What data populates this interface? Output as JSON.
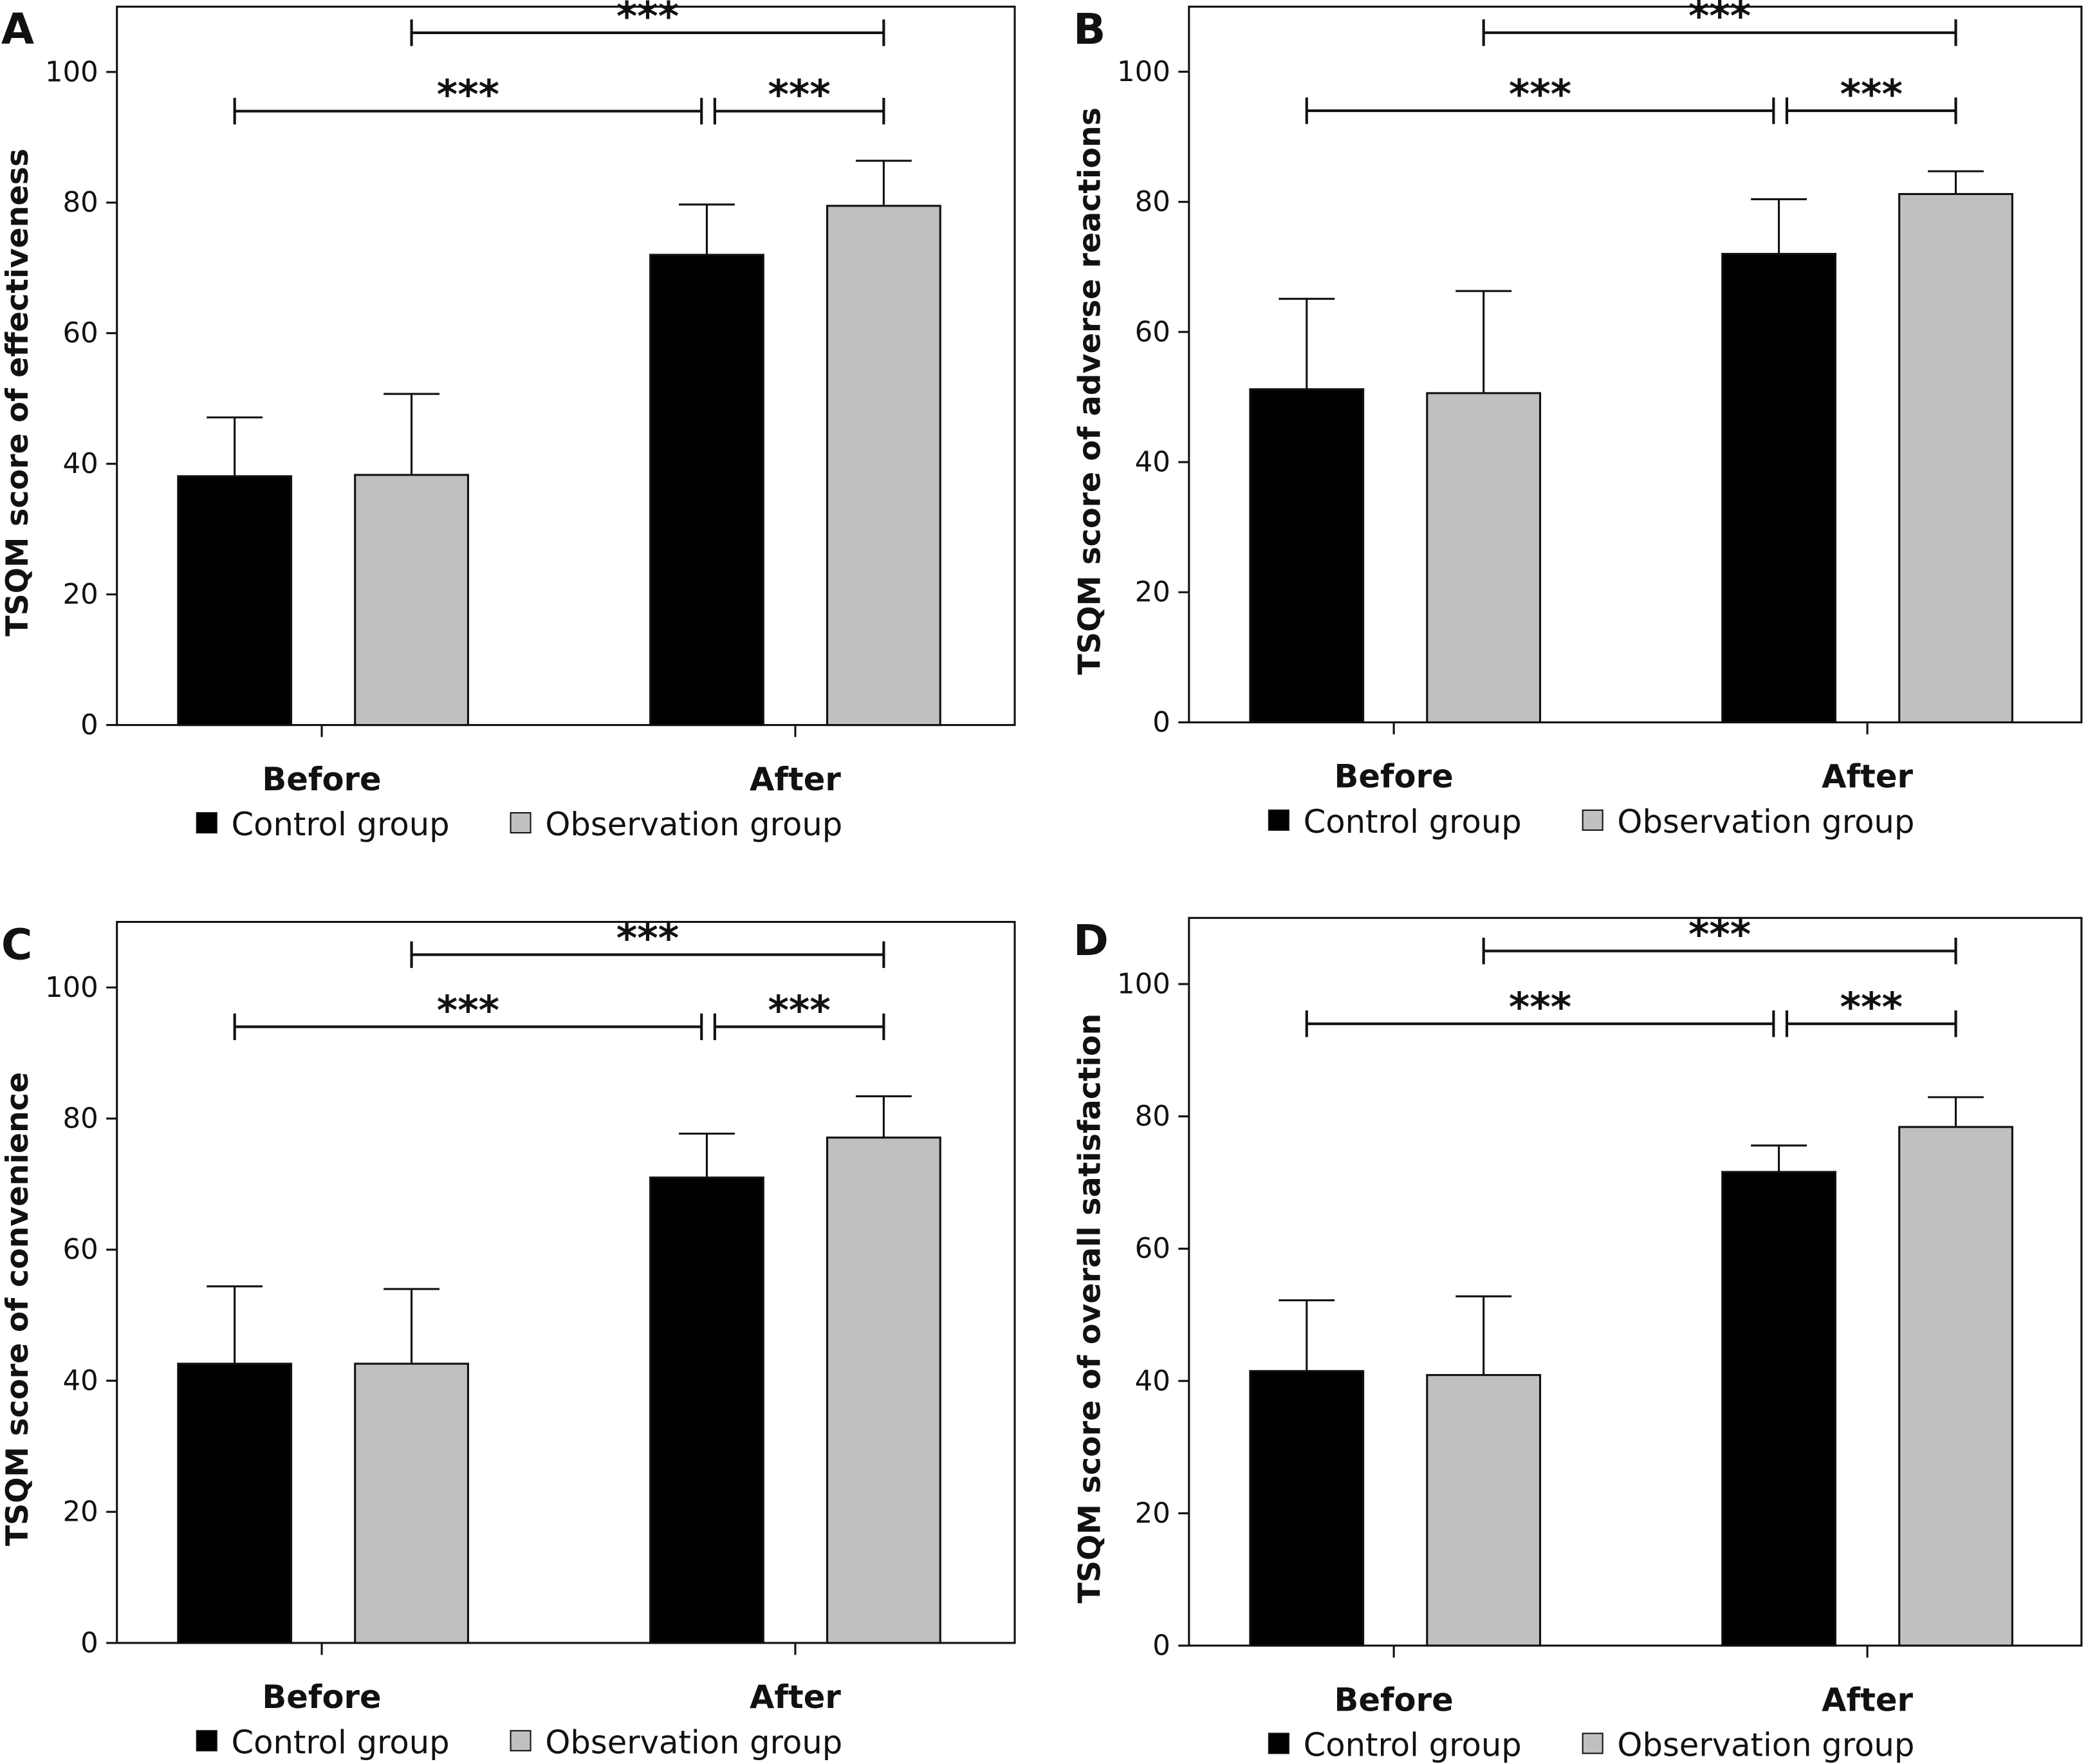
{
  "colors": {
    "control": "#000000",
    "observation": "#c0c0c0",
    "axis": "#111111"
  },
  "chart_data": [
    {
      "panel": "A",
      "type": "bar",
      "ylabel": "TSQM score of effectiveness",
      "categories": [
        "Before",
        "After"
      ],
      "ylim": [
        0,
        110
      ],
      "yticks": [
        0,
        20,
        40,
        60,
        80,
        100
      ],
      "series": [
        {
          "name": "Control group",
          "values": [
            38.1,
            72.0
          ],
          "errors": [
            9.0,
            7.7
          ]
        },
        {
          "name": "Observation group",
          "values": [
            38.3,
            79.5
          ],
          "errors": [
            12.4,
            6.9
          ]
        }
      ],
      "annotations": [
        {
          "label": "***",
          "from": [
            0,
            1
          ],
          "to": [
            1,
            1
          ],
          "y": 106
        },
        {
          "label": "***",
          "from": [
            0,
            0
          ],
          "to": [
            1,
            0
          ],
          "y": 94
        },
        {
          "label": "***",
          "from": [
            1,
            0
          ],
          "to": [
            1,
            1
          ],
          "y": 94
        }
      ]
    },
    {
      "panel": "B",
      "type": "bar",
      "ylabel": "TSQM score of adverse reactions",
      "categories": [
        "Before",
        "After"
      ],
      "ylim": [
        0,
        110
      ],
      "yticks": [
        0,
        20,
        40,
        60,
        80,
        100
      ],
      "series": [
        {
          "name": "Control group",
          "values": [
            51.2,
            72.0
          ],
          "errors": [
            13.9,
            8.4
          ]
        },
        {
          "name": "Observation group",
          "values": [
            50.6,
            81.2
          ],
          "errors": [
            15.7,
            3.5
          ]
        }
      ],
      "annotations": [
        {
          "label": "***",
          "from": [
            0,
            1
          ],
          "to": [
            1,
            1
          ],
          "y": 106
        },
        {
          "label": "***",
          "from": [
            0,
            0
          ],
          "to": [
            1,
            0
          ],
          "y": 94
        },
        {
          "label": "***",
          "from": [
            1,
            0
          ],
          "to": [
            1,
            1
          ],
          "y": 94
        }
      ]
    },
    {
      "panel": "C",
      "type": "bar",
      "ylabel": "TSQM score of convenience",
      "categories": [
        "Before",
        "After"
      ],
      "ylim": [
        0,
        110
      ],
      "yticks": [
        0,
        20,
        40,
        60,
        80,
        100
      ],
      "series": [
        {
          "name": "Control group",
          "values": [
            42.6,
            71.0
          ],
          "errors": [
            11.8,
            6.7
          ]
        },
        {
          "name": "Observation group",
          "values": [
            42.6,
            77.1
          ],
          "errors": [
            11.4,
            6.3
          ]
        }
      ],
      "annotations": [
        {
          "label": "***",
          "from": [
            0,
            1
          ],
          "to": [
            1,
            1
          ],
          "y": 105
        },
        {
          "label": "***",
          "from": [
            0,
            0
          ],
          "to": [
            1,
            0
          ],
          "y": 94
        },
        {
          "label": "***",
          "from": [
            1,
            0
          ],
          "to": [
            1,
            1
          ],
          "y": 94
        }
      ]
    },
    {
      "panel": "D",
      "type": "bar",
      "ylabel": "TSQM score of overall satisfaction",
      "categories": [
        "Before",
        "After"
      ],
      "ylim": [
        0,
        110
      ],
      "yticks": [
        0,
        20,
        40,
        60,
        80,
        100
      ],
      "series": [
        {
          "name": "Control group",
          "values": [
            41.5,
            71.6
          ],
          "errors": [
            10.7,
            4.0
          ]
        },
        {
          "name": "Observation group",
          "values": [
            40.9,
            78.4
          ],
          "errors": [
            11.9,
            4.5
          ]
        }
      ],
      "annotations": [
        {
          "label": "***",
          "from": [
            0,
            1
          ],
          "to": [
            1,
            1
          ],
          "y": 105
        },
        {
          "label": "***",
          "from": [
            0,
            0
          ],
          "to": [
            1,
            0
          ],
          "y": 94
        },
        {
          "label": "***",
          "from": [
            1,
            0
          ],
          "to": [
            1,
            1
          ],
          "y": 94
        }
      ]
    }
  ]
}
